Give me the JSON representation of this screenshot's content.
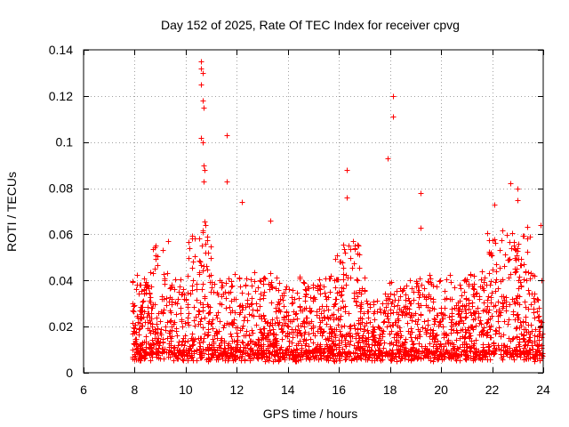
{
  "chart_data": {
    "type": "scatter",
    "title": "Day 152 of 2025, Rate Of TEC Index for receiver cpvg",
    "xlabel": "GPS time / hours",
    "ylabel": "ROTI / TECUs",
    "xlim": [
      6,
      24
    ],
    "ylim": [
      0,
      0.14
    ],
    "x_ticks": [
      6,
      8,
      10,
      12,
      14,
      16,
      18,
      20,
      22,
      24
    ],
    "y_ticks": [
      0,
      0.02,
      0.04,
      0.06,
      0.08,
      0.1,
      0.12,
      0.14
    ],
    "x_tick_labels": [
      "6",
      "8",
      "10",
      "12",
      "14",
      "16",
      "18",
      "20",
      "22",
      "24"
    ],
    "y_tick_labels": [
      "0",
      "0.02",
      "0.04",
      "0.06",
      "0.08",
      "0.1",
      "0.12",
      "0.14"
    ],
    "grid": true,
    "marker": "+",
    "color": "#ff0000",
    "series": [
      {
        "name": "ROTI",
        "x_range_hours": [
          7.9,
          24.0
        ],
        "typical_range": [
          0.005,
          0.04
        ],
        "notable_points": [
          {
            "x": 10.6,
            "y": 0.135
          },
          {
            "x": 10.6,
            "y": 0.132
          },
          {
            "x": 10.65,
            "y": 0.13
          },
          {
            "x": 10.6,
            "y": 0.125
          },
          {
            "x": 10.65,
            "y": 0.118
          },
          {
            "x": 10.7,
            "y": 0.115
          },
          {
            "x": 10.6,
            "y": 0.102
          },
          {
            "x": 10.65,
            "y": 0.1
          },
          {
            "x": 10.7,
            "y": 0.09
          },
          {
            "x": 10.75,
            "y": 0.088
          },
          {
            "x": 10.7,
            "y": 0.083
          },
          {
            "x": 11.6,
            "y": 0.103
          },
          {
            "x": 11.6,
            "y": 0.083
          },
          {
            "x": 12.2,
            "y": 0.074
          },
          {
            "x": 13.3,
            "y": 0.066
          },
          {
            "x": 16.3,
            "y": 0.088
          },
          {
            "x": 16.3,
            "y": 0.076
          },
          {
            "x": 18.1,
            "y": 0.12
          },
          {
            "x": 18.1,
            "y": 0.111
          },
          {
            "x": 17.9,
            "y": 0.093
          },
          {
            "x": 19.2,
            "y": 0.078
          },
          {
            "x": 19.2,
            "y": 0.063
          },
          {
            "x": 22.1,
            "y": 0.073
          },
          {
            "x": 22.7,
            "y": 0.082
          },
          {
            "x": 23.0,
            "y": 0.08
          },
          {
            "x": 23.0,
            "y": 0.075
          },
          {
            "x": 23.9,
            "y": 0.064
          }
        ]
      }
    ]
  }
}
